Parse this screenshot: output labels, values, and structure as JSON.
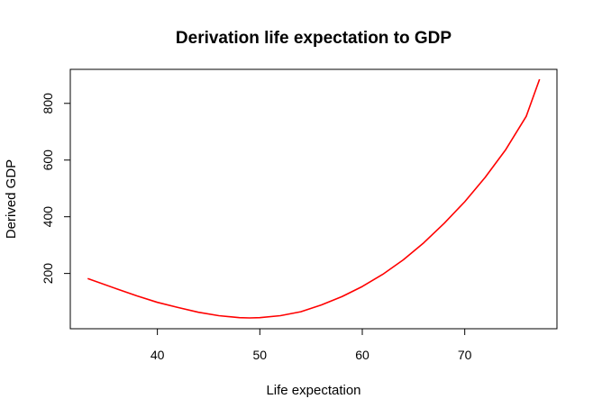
{
  "chart_data": {
    "type": "line",
    "title": "Derivation life expectation to GDP",
    "xlabel": "Life expectation",
    "ylabel": "Derived GDP",
    "xlim": [
      31.5,
      79
    ],
    "ylim": [
      5,
      920
    ],
    "xticks": [
      40,
      50,
      60,
      70
    ],
    "yticks": [
      200,
      400,
      600,
      800
    ],
    "grid": false,
    "series": [
      {
        "color": "#ff0000",
        "x": [
          33.2,
          36,
          38,
          40,
          42,
          44,
          46,
          48,
          49,
          50,
          52,
          54,
          56,
          58,
          60,
          62,
          64,
          66,
          68,
          70,
          72,
          74,
          76,
          77.3
        ],
        "y": [
          182,
          146,
          121,
          98,
          80,
          63,
          51,
          44,
          43,
          44,
          51,
          65,
          89,
          118,
          154,
          197,
          248,
          308,
          377,
          453,
          539,
          637,
          754,
          885
        ]
      }
    ]
  }
}
